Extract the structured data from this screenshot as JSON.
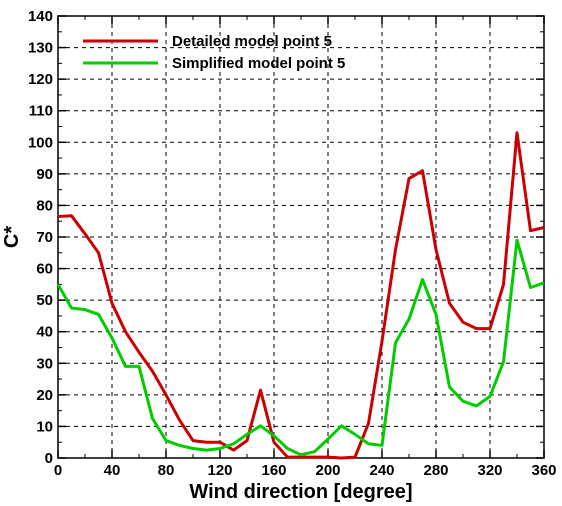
{
  "chart_data": {
    "type": "line",
    "title": "",
    "xlabel": "Wind direction [degree]",
    "ylabel": "C*",
    "xlim": [
      0,
      360
    ],
    "ylim": [
      0,
      140
    ],
    "xticks": [
      0,
      40,
      80,
      120,
      160,
      200,
      240,
      280,
      320,
      360
    ],
    "yticks": [
      0,
      10,
      20,
      30,
      40,
      50,
      60,
      70,
      80,
      90,
      100,
      110,
      120,
      130,
      140
    ],
    "grid": true,
    "legend_position": "top-left",
    "series": [
      {
        "name": "Detailed model point 5",
        "color": "#cc0000",
        "x": [
          0,
          10,
          20,
          30,
          40,
          50,
          60,
          70,
          80,
          90,
          100,
          110,
          120,
          130,
          140,
          150,
          160,
          170,
          180,
          190,
          200,
          210,
          220,
          230,
          240,
          250,
          260,
          270,
          280,
          290,
          300,
          310,
          320,
          330,
          340,
          350,
          360
        ],
        "y": [
          76.5,
          76.7,
          71,
          65,
          49,
          40,
          33.5,
          27.5,
          20,
          12,
          5.5,
          5,
          5,
          2.5,
          5.5,
          21.5,
          5,
          0.3,
          0.3,
          0.3,
          0.3,
          0,
          0.3,
          11,
          37,
          66,
          88.5,
          91,
          66,
          49,
          43,
          41,
          41,
          55,
          103,
          72,
          73
        ]
      },
      {
        "name": "Simplified model point 5",
        "color": "#00cc00",
        "x": [
          0,
          10,
          20,
          30,
          40,
          50,
          60,
          70,
          80,
          90,
          100,
          110,
          120,
          130,
          140,
          150,
          160,
          170,
          180,
          190,
          200,
          210,
          220,
          230,
          240,
          250,
          260,
          270,
          280,
          290,
          300,
          310,
          320,
          330,
          340,
          350,
          360
        ],
        "y": [
          55,
          47.5,
          47,
          45.5,
          38,
          29,
          29,
          12.5,
          5.5,
          4,
          3,
          2.5,
          3,
          4.5,
          7.5,
          10.2,
          7,
          3,
          1,
          2,
          6,
          10.2,
          7.5,
          4.5,
          4,
          36.5,
          44,
          56.5,
          45.5,
          22.5,
          18,
          16.5,
          19.5,
          30.5,
          69,
          54,
          55.5
        ]
      }
    ]
  }
}
